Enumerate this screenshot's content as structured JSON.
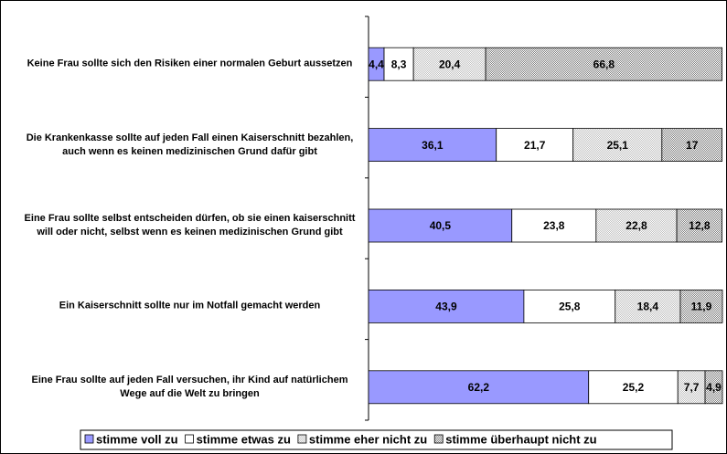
{
  "chart_data": {
    "type": "stacked_barh",
    "categories": [
      "Keine Frau sollte sich den Risiken einer normalen Geburt aussetzen",
      "Die Krankenkasse sollte auf jeden Fall einen Kaiserschnitt bezahlen, auch wenn es keinen medizinischen Grund dafür gibt",
      "Eine Frau sollte selbst entscheiden dürfen, ob sie einen kaiserschnitt will oder nicht, selbst wenn es keinen medizinischen Grund gibt",
      "Ein Kaiserschnitt sollte nur im Notfall gemacht werden",
      "Eine Frau sollte auf jeden Fall versuchen, ihr Kind auf natürlichem Wege auf die Welt zu bringen"
    ],
    "series": [
      {
        "name": "stimme voll zu",
        "color": "#9999ff",
        "hatch": false,
        "values": [
          4.4,
          36.1,
          40.5,
          43.9,
          62.2
        ],
        "value_labels": [
          "4,4",
          "36,1",
          "40,5",
          "43,9",
          "62,2"
        ]
      },
      {
        "name": "stimme etwas zu",
        "color": "#ffffff",
        "hatch": false,
        "values": [
          8.3,
          21.7,
          23.8,
          25.8,
          25.2
        ],
        "value_labels": [
          "8,3",
          "21,7",
          "23,8",
          "25,8",
          "25,2"
        ]
      },
      {
        "name": "stimme eher nicht zu",
        "color": "#c0c0c0",
        "hatch": true,
        "values": [
          20.4,
          25.1,
          22.8,
          18.4,
          7.7
        ],
        "value_labels": [
          "20,4",
          "25,1",
          "22,8",
          "18,4",
          "7,7"
        ]
      },
      {
        "name": "stimme überhaupt nicht zu",
        "color": "#808080",
        "hatch": true,
        "values": [
          66.8,
          17,
          12.8,
          11.9,
          4.9
        ],
        "value_labels": [
          "66,8",
          "17",
          "12,8",
          "11,9",
          "4,9"
        ]
      }
    ],
    "xlim": [
      0,
      100
    ],
    "legend": "bottom"
  }
}
